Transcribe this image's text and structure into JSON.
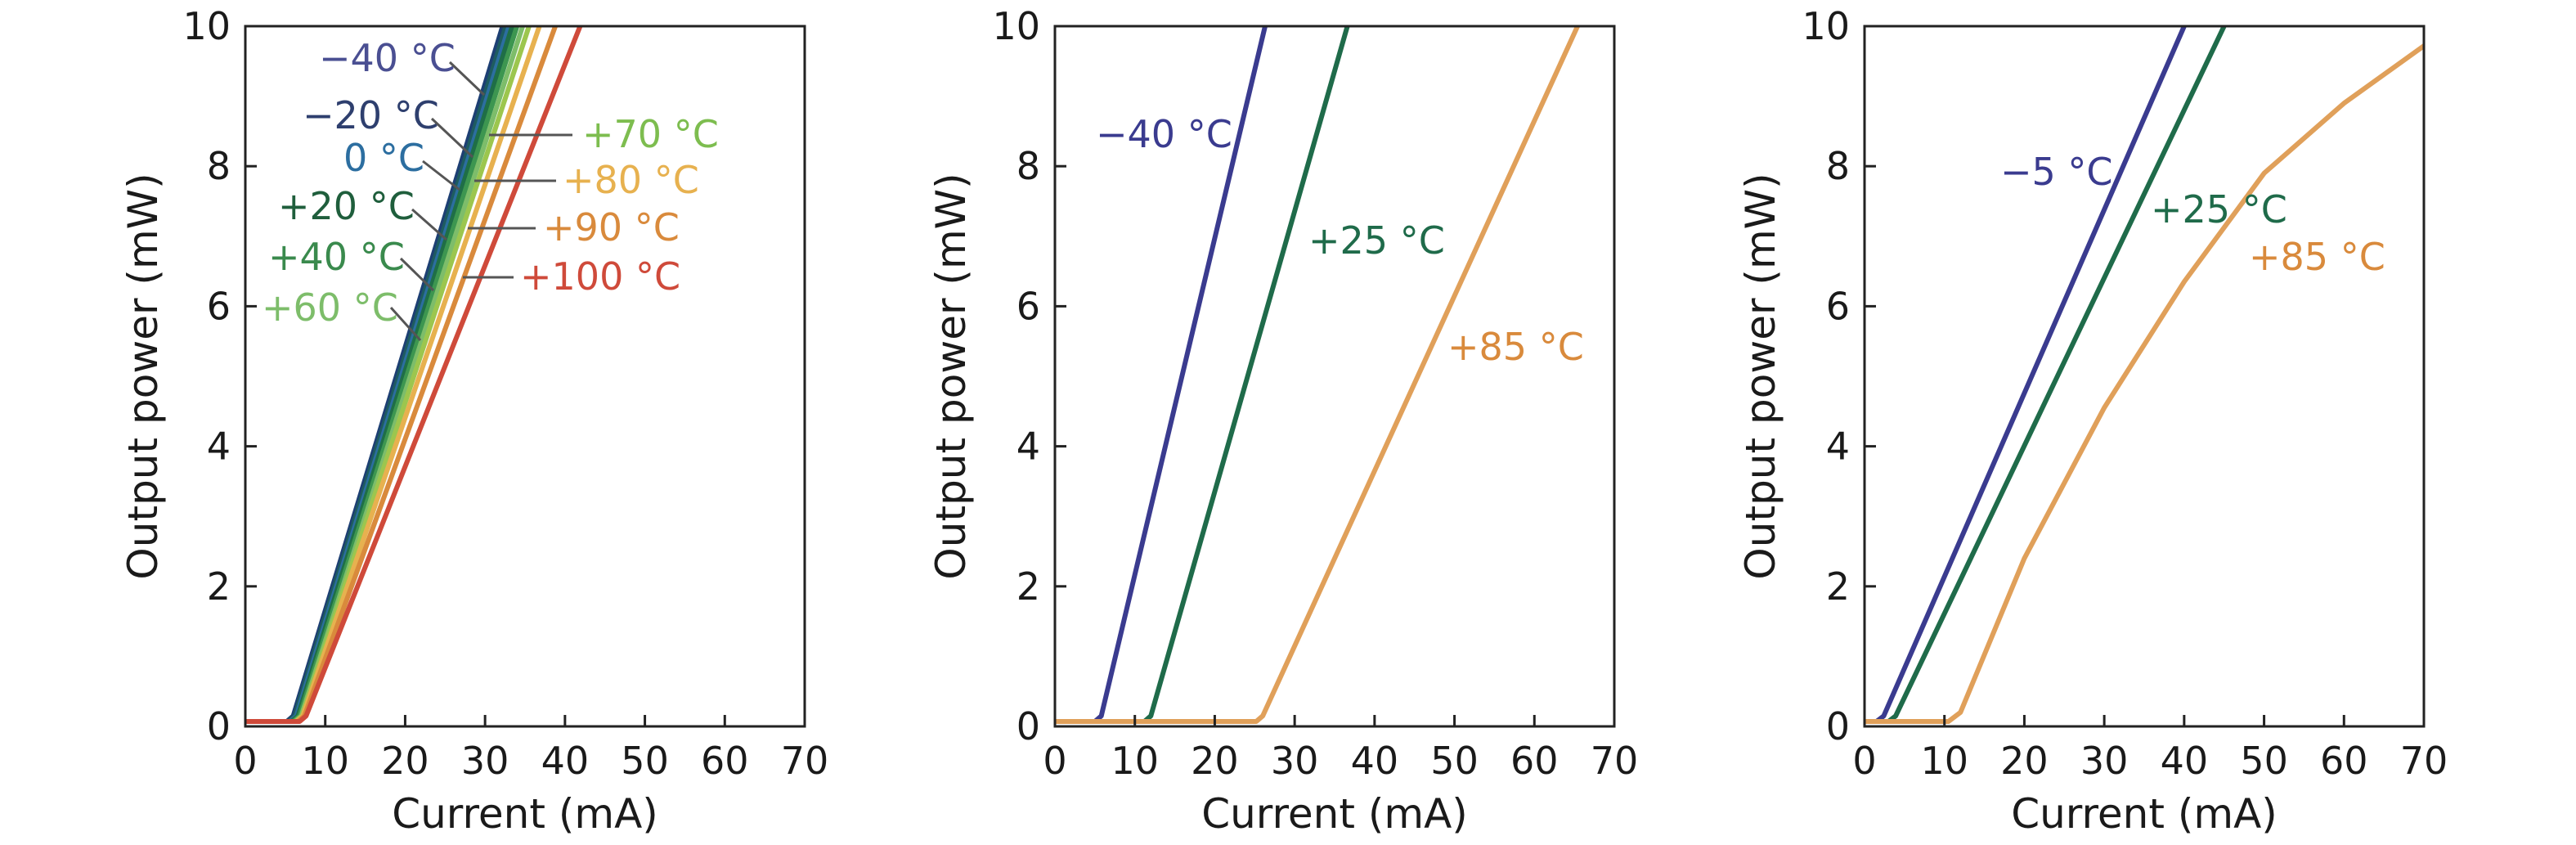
{
  "chart_data": [
    {
      "type": "line",
      "xlabel": "Current (mA)",
      "ylabel": "Output power (mW)",
      "xlim": [
        0,
        70
      ],
      "ylim": [
        0,
        10
      ],
      "xticks": [
        "0",
        "10",
        "20",
        "30",
        "40",
        "50",
        "60",
        "70"
      ],
      "yticks": [
        "0",
        "2",
        "4",
        "6",
        "8",
        "10"
      ],
      "series": [
        {
          "name": "−40 °C",
          "color": "#1d3f73",
          "threshold": 6.0,
          "x_at_10mW": 32.2
        },
        {
          "name": "−20 °C",
          "color": "#1e5c5f",
          "threshold": 6.2,
          "x_at_10mW": 32.6
        },
        {
          "name": "0 °C",
          "color": "#2c6ea0",
          "threshold": 6.4,
          "x_at_10mW": 33.0
        },
        {
          "name": "+20 °C",
          "color": "#1f6e46",
          "threshold": 6.6,
          "x_at_10mW": 33.4
        },
        {
          "name": "+40 °C",
          "color": "#3d9650",
          "threshold": 6.8,
          "x_at_10mW": 34.0
        },
        {
          "name": "+60 °C",
          "color": "#7dbd6a",
          "threshold": 7.0,
          "x_at_10mW": 34.7
        },
        {
          "name": "+70 °C",
          "color": "#9cc64e",
          "threshold": 7.1,
          "x_at_10mW": 35.5
        },
        {
          "name": "+80 °C",
          "color": "#e7b14f",
          "threshold": 7.2,
          "x_at_10mW": 36.8
        },
        {
          "name": "+90 °C",
          "color": "#d98a3c",
          "threshold": 7.4,
          "x_at_10mW": 38.8
        },
        {
          "name": "+100 °C",
          "color": "#cf4a3a",
          "threshold": 7.6,
          "x_at_10mW": 41.9
        }
      ]
    },
    {
      "type": "line",
      "xlabel": "Current (mA)",
      "ylabel": "Output power (mW)",
      "xlim": [
        0,
        70
      ],
      "ylim": [
        0,
        10
      ],
      "xticks": [
        "0",
        "10",
        "20",
        "30",
        "40",
        "50",
        "60",
        "70"
      ],
      "yticks": [
        "0",
        "2",
        "4",
        "6",
        "8",
        "10"
      ],
      "series": [
        {
          "name": "−40 °C",
          "color": "#3a3b8f",
          "threshold": 5.8,
          "x_at_10mW": 26.3
        },
        {
          "name": "+25 °C",
          "color": "#1f6b4a",
          "threshold": 12.0,
          "x_at_10mW": 36.6
        },
        {
          "name": "+85 °C",
          "color": "#e0a05a",
          "threshold": 26.0,
          "x_at_10mW": 65.4
        }
      ]
    },
    {
      "type": "line",
      "xlabel": "Current (mA)",
      "ylabel": "Output power (mW)",
      "xlim": [
        0,
        70
      ],
      "ylim": [
        0,
        10
      ],
      "xticks": [
        "0",
        "10",
        "20",
        "30",
        "40",
        "50",
        "60",
        "70"
      ],
      "yticks": [
        "0",
        "2",
        "4",
        "6",
        "8",
        "10"
      ],
      "series": [
        {
          "name": "−5 °C",
          "color": "#3a3b8f",
          "points": [
            [
              0,
              0.07
            ],
            [
              1.5,
              0.07
            ],
            [
              2.4,
              0.15
            ],
            [
              40.0,
              10.0
            ]
          ]
        },
        {
          "name": "+25 °C",
          "color": "#1f6b4a",
          "points": [
            [
              0,
              0.07
            ],
            [
              3.0,
              0.07
            ],
            [
              3.9,
              0.15
            ],
            [
              45.0,
              10.0
            ]
          ]
        },
        {
          "name": "+85 °C",
          "color": "#e0a05a",
          "points": [
            [
              0,
              0.07
            ],
            [
              10.5,
              0.07
            ],
            [
              12.0,
              0.2
            ],
            [
              20.0,
              2.4
            ],
            [
              30.0,
              4.55
            ],
            [
              40.0,
              6.35
            ],
            [
              50.0,
              7.9
            ],
            [
              60.0,
              8.9
            ],
            [
              70.0,
              9.72
            ]
          ]
        }
      ]
    }
  ]
}
